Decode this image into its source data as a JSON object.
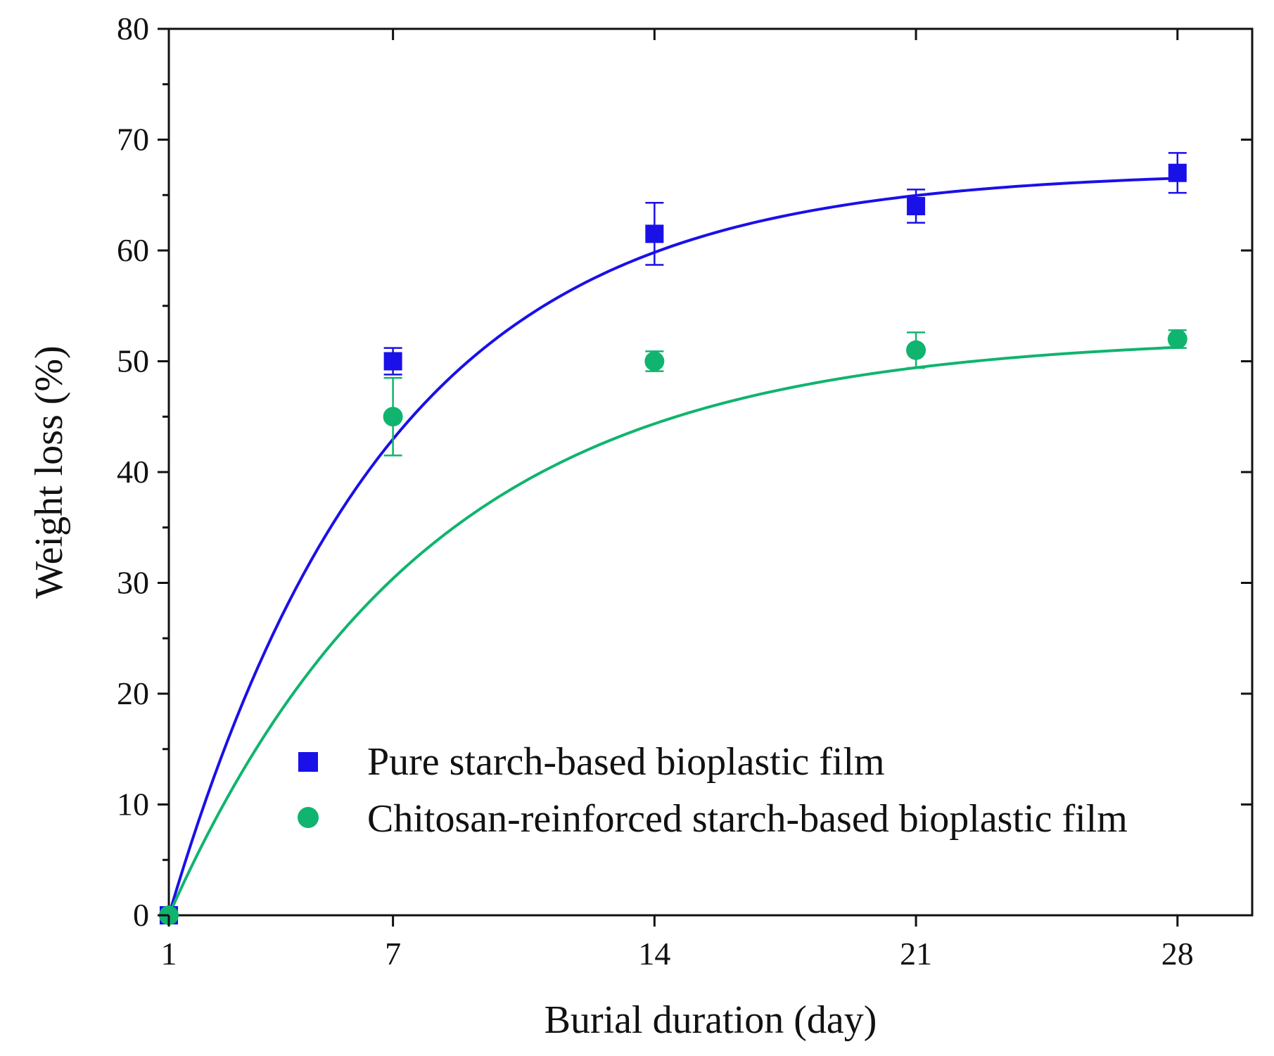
{
  "chart_data": {
    "type": "scatter",
    "title": "",
    "xlabel": "Burial duration (day)",
    "ylabel": "Weight loss (%)",
    "xlim": [
      1,
      30
    ],
    "ylim": [
      0,
      80
    ],
    "xticks": [
      1,
      7,
      14,
      21,
      28
    ],
    "yticks": [
      0,
      10,
      20,
      30,
      40,
      50,
      60,
      70,
      80
    ],
    "legend_position": "bottom-right",
    "grid": false,
    "series": [
      {
        "name": "Pure starch-based bioplastic film",
        "marker": "square",
        "color": "#1a10e8",
        "x": [
          1,
          7,
          14,
          21,
          28
        ],
        "y": [
          0,
          50.0,
          61.5,
          64.0,
          67.0
        ],
        "err": [
          0,
          1.2,
          2.8,
          1.5,
          1.8
        ],
        "fit": {
          "model": "exponential",
          "plateau": 67.2,
          "rate": 0.17
        }
      },
      {
        "name": "Chitosan-reinforced starch-based bioplastic film",
        "marker": "circle",
        "color": "#10b46e",
        "x": [
          1,
          7,
          14,
          21,
          28
        ],
        "y": [
          0,
          45.0,
          50.0,
          51.0,
          52.0
        ],
        "err": [
          0,
          3.5,
          0.9,
          1.6,
          0.8
        ],
        "fit": {
          "model": "exponential",
          "plateau": 52.3,
          "rate": 0.145
        }
      }
    ]
  }
}
